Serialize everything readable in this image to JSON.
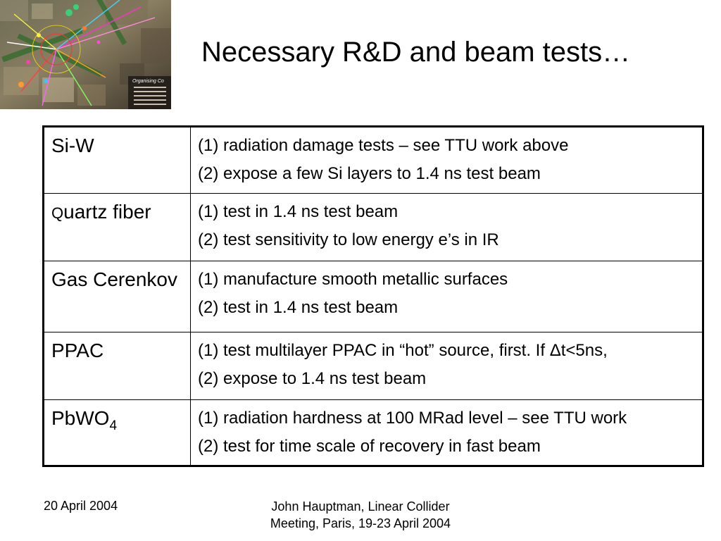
{
  "slide": {
    "title": "Necessary R&D and beam tests…",
    "corner_image": {
      "caption_fragment": "Organising Co"
    }
  },
  "table": {
    "rows": [
      {
        "label": "Si-W",
        "items": [
          "(1) radiation damage tests – see TTU work above",
          "(2) expose a few Si layers to 1.4 ns test beam"
        ]
      },
      {
        "label_first_letter": "Q",
        "label_rest": "uartz fiber",
        "items": [
          "(1) test in 1.4 ns test beam",
          "(2) test sensitivity to low energy e’s in IR"
        ]
      },
      {
        "label": "Gas Cerenkov",
        "items": [
          "(1) manufacture smooth metallic surfaces",
          "(2) test in 1.4 ns test beam"
        ]
      },
      {
        "label": "PPAC",
        "items": [
          "(1) test multilayer PPAC in “hot” source, first.  If Δt<5ns,",
          "(2) expose to 1.4 ns test beam"
        ]
      },
      {
        "label_base": "PbWO",
        "label_subscript": "4",
        "items": [
          "(1) radiation hardness at 100 MRad level – see TTU work",
          "(2) test for time scale of recovery in fast beam"
        ]
      }
    ]
  },
  "footer": {
    "date": "20 April 2004",
    "author_line1": "John Hauptman, Linear Collider",
    "author_line2": "Meeting, Paris, 19-23 April 2004"
  }
}
